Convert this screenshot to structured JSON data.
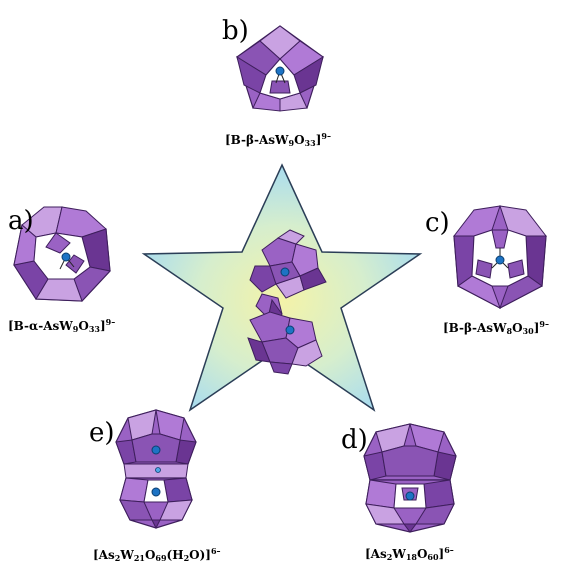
{
  "colors": {
    "polyhedron_fill": "#9a62c4",
    "polyhedron_light": "#c9a2e2",
    "polyhedron_dark": "#6a3592",
    "polyhedron_edge": "#3e1f5c",
    "heteroatom": "#1d73c4",
    "star_outer": "#a9dcef",
    "star_inner": "#f4f3a8",
    "star_edge": "#2b3e57"
  },
  "panels": {
    "a": {
      "label": "a)",
      "formula": {
        "open": "[B-α-AsW",
        "n1": "9",
        "mid": "O",
        "n2": "33",
        "close": "]",
        "charge": "9–"
      }
    },
    "b": {
      "label": "b)",
      "formula": {
        "open": "[B-β-AsW",
        "n1": "9",
        "mid": "O",
        "n2": "33",
        "close": "]",
        "charge": "9–"
      }
    },
    "c": {
      "label": "c)",
      "formula": {
        "open": "[B-β-AsW",
        "n1": "8",
        "mid": "O",
        "n2": "30",
        "close": "]",
        "charge": "9–"
      }
    },
    "d": {
      "label": "d)",
      "formula": {
        "open": "[As",
        "n1": "2",
        "mid": "W",
        "n2": "18",
        "mid2": "O",
        "n3": "60",
        "close": "]",
        "charge": "6–"
      }
    },
    "e": {
      "label": "e)",
      "formula": {
        "open": "[As",
        "n1": "2",
        "mid": "W",
        "n2": "21",
        "mid2": "O",
        "n3": "69",
        "mid3": "(H",
        "n4": "2",
        "close": "O)]",
        "charge": "6–"
      }
    }
  }
}
